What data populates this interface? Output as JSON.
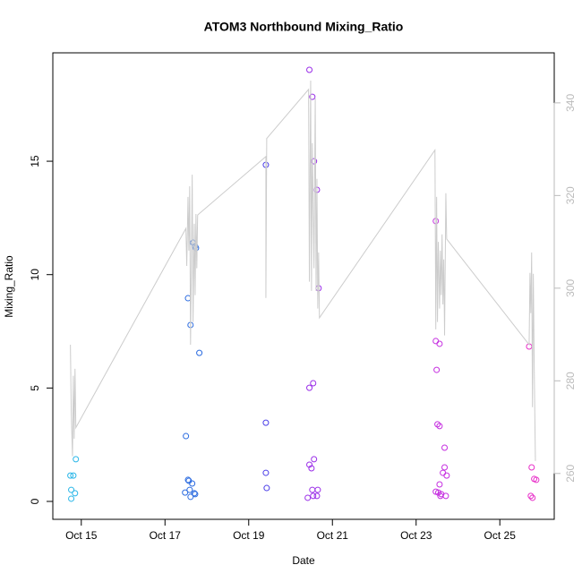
{
  "chart_data": {
    "type": "scatter",
    "title": "ATOM3 Northbound Mixing_Ratio",
    "x_label": "Date",
    "y_label": "Mixing_Ratio",
    "xlim": [
      14.32,
      26.3
    ],
    "xticks": [
      {
        "value": 15,
        "label": "Oct 15"
      },
      {
        "value": 17,
        "label": "Oct 17"
      },
      {
        "value": 19,
        "label": "Oct 19"
      },
      {
        "value": 21,
        "label": "Oct 21"
      },
      {
        "value": 23,
        "label": "Oct 23"
      },
      {
        "value": 25,
        "label": "Oct 25"
      }
    ],
    "ylim": [
      -0.79,
      19.78
    ],
    "yticks": [
      0,
      5,
      10,
      15
    ],
    "y2lim": [
      250.1,
      350.8
    ],
    "y2ticks": [
      260,
      280,
      300,
      320,
      340
    ],
    "y2_color": "#bbbbbb",
    "series": [
      {
        "color": "#29b6e8",
        "x": [
          14.76,
          14.74,
          14.81,
          14.76,
          14.85,
          14.87
        ],
        "values": [
          0.12,
          1.14,
          1.14,
          0.51,
          0.36,
          1.86
        ]
      },
      {
        "color": "#2b6be0",
        "x": [
          17.67,
          17.74,
          17.72,
          17.55,
          17.61,
          17.82,
          17.5,
          17.55,
          17.57,
          17.65,
          17.48,
          17.59,
          17.7,
          17.72,
          17.61
        ],
        "values": [
          11.41,
          11.17,
          11.25,
          8.96,
          7.78,
          6.55,
          2.88,
          0.95,
          0.91,
          0.79,
          0.39,
          0.51,
          0.36,
          0.32,
          0.2
        ]
      },
      {
        "color": "#4b3ee8",
        "x": [
          19.41,
          19.41,
          19.41,
          19.43
        ],
        "values": [
          14.84,
          3.47,
          1.26,
          0.59
        ]
      },
      {
        "color": "#9a2ee8",
        "x": [
          20.45,
          20.52,
          20.56,
          20.63,
          20.67,
          20.54,
          20.45,
          20.45,
          20.5,
          20.56,
          20.52,
          20.65,
          20.41,
          20.54,
          20.63
        ],
        "values": [
          19.03,
          17.84,
          15.0,
          13.74,
          9.4,
          5.21,
          5.01,
          1.62,
          1.46,
          1.86,
          0.51,
          0.51,
          0.16,
          0.24,
          0.24
        ]
      },
      {
        "color": "#c52ee0",
        "x": [
          23.47,
          23.47,
          23.56,
          23.49,
          23.51,
          23.56,
          23.68,
          23.68,
          23.64,
          23.73,
          23.56,
          23.47,
          23.53,
          23.6,
          23.58,
          23.71
        ],
        "values": [
          12.36,
          7.07,
          6.95,
          5.8,
          3.4,
          3.32,
          2.37,
          1.5,
          1.26,
          1.14,
          0.75,
          0.43,
          0.39,
          0.32,
          0.24,
          0.24
        ]
      },
      {
        "color": "#e82ec8",
        "x": [
          25.7,
          25.76,
          25.82,
          25.87,
          25.74,
          25.78
        ],
        "values": [
          6.83,
          1.5,
          0.99,
          0.95,
          0.24,
          0.16
        ]
      },
      {
        "type": "line",
        "axis": "y2",
        "color": "#cccccc",
        "x": [
          14.74,
          14.76,
          14.79,
          14.81,
          14.83,
          14.85,
          14.87,
          17.5,
          17.52,
          17.55,
          17.57,
          17.59,
          17.61,
          17.63,
          17.65,
          17.67,
          17.7,
          17.72,
          17.74,
          17.76,
          17.78,
          19.41,
          19.41,
          19.43,
          19.43,
          20.43,
          20.45,
          20.48,
          20.5,
          20.52,
          20.56,
          20.59,
          20.61,
          20.63,
          20.65,
          20.67,
          20.69,
          23.45,
          23.47,
          23.49,
          23.51,
          23.53,
          23.56,
          23.58,
          23.6,
          23.62,
          23.64,
          23.66,
          23.68,
          23.71,
          23.73,
          25.7,
          25.72,
          25.74,
          25.76,
          25.78,
          25.8,
          25.82,
          25.85
        ],
        "values": [
          287.8,
          273.3,
          263.7,
          281.1,
          267.5,
          282.6,
          269.9,
          312.9,
          304.8,
          319.7,
          308.1,
          322.0,
          287.8,
          304.3,
          324.5,
          292.7,
          313.9,
          298.5,
          316.0,
          304.3,
          315.8,
          328.4,
          297.9,
          331.7,
          332.3,
          342.9,
          301.4,
          344.8,
          299.4,
          331.3,
          304.3,
          341.0,
          299.4,
          323.6,
          295.6,
          307.7,
          293.6,
          329.8,
          291.1,
          319.7,
          292.7,
          310.0,
          295.6,
          308.1,
          298.5,
          311.6,
          296.5,
          306.2,
          289.8,
          320.5,
          310.6,
          287.8,
          303.3,
          294.6,
          307.7,
          274.3,
          303.1,
          284.0,
          262.7
        ]
      }
    ]
  }
}
